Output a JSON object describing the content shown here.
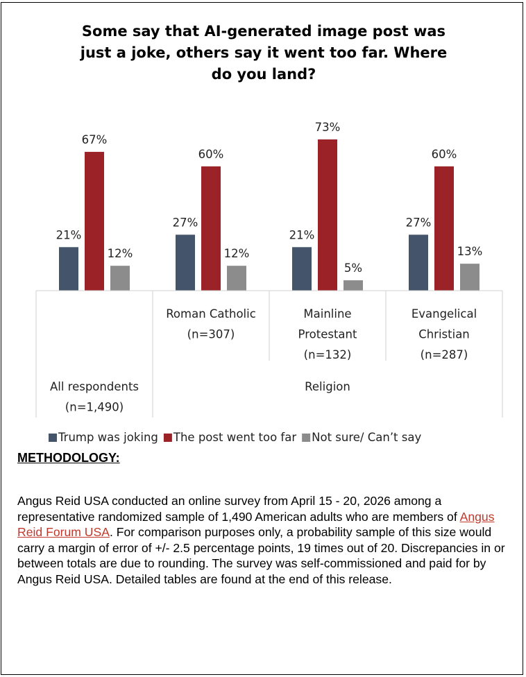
{
  "chart_data": {
    "type": "bar",
    "title": "Some say that AI-generated image post was just a joke, others say it went too far. Where do you land?",
    "categories": [
      "All respondents (n=1,490)",
      "Roman Catholic (n=307)",
      "Mainline Protestant (n=132)",
      "Evangelical Christian (n=287)"
    ],
    "category_labels": [
      [
        "All respondents",
        "(n=1,490)"
      ],
      [
        "Roman Catholic",
        "(n=307)"
      ],
      [
        "Mainline",
        "Protestant",
        "(n=132)"
      ],
      [
        "Evangelical",
        "Christian",
        "(n=287)"
      ]
    ],
    "group_label": "Religion",
    "series": [
      {
        "name": "Trump was joking",
        "color": "#44546a",
        "values": [
          21,
          27,
          21,
          27
        ]
      },
      {
        "name": "The post went too far",
        "color": "#9b2226",
        "values": [
          67,
          60,
          73,
          60
        ]
      },
      {
        "name": "Not sure/ Can’t say",
        "color": "#8c8c8c",
        "values": [
          12,
          12,
          5,
          13
        ]
      }
    ],
    "value_suffix": "%",
    "ylim": [
      0,
      80
    ],
    "grid": false,
    "legend": "bottom"
  },
  "methodology": {
    "heading": "METHODOLOGY:",
    "text_before_link": "Angus Reid USA conducted an online survey from April 15 - 20, 2026 among a representative randomized sample of 1,490 American adults who are members of ",
    "link_text": "Angus Reid Forum USA",
    "text_after_link": ". For comparison purposes only, a probability sample of this size would carry a margin of error of +/- 2.5 percentage points, 19 times out of 20. Discrepancies in or between totals are due to rounding. The survey was self-commissioned and paid for by Angus Reid USA. Detailed tables are found at the end of this release."
  }
}
